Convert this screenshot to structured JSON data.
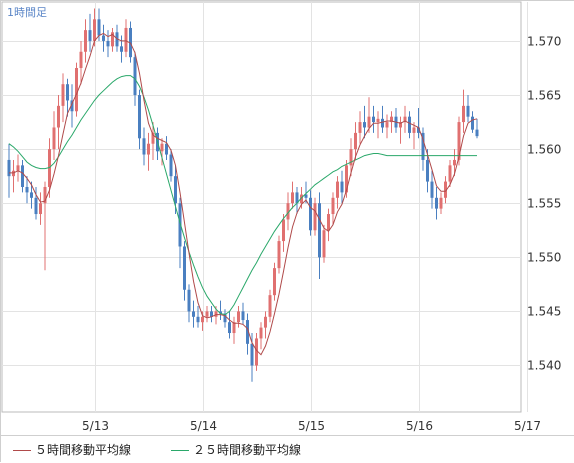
{
  "chart_data": {
    "type": "candlestick",
    "period_label": "1時間足",
    "x_tick_labels": [
      "5/13",
      "5/14",
      "5/15",
      "5/16",
      "5/17"
    ],
    "x_tick_index": [
      19,
      43,
      67,
      91,
      115
    ],
    "y_ticks": [
      1.54,
      1.545,
      1.55,
      1.555,
      1.56,
      1.565,
      1.57
    ],
    "ylim": [
      1.5357,
      1.5736
    ],
    "grid": true,
    "up_color": "#e07070",
    "down_color": "#4a7fc0",
    "ma_colors": {
      "ma5": "#b04a4a",
      "ma25": "#2aa86a"
    },
    "legend": [
      {
        "key": "ma5",
        "label": "５時間移動平均線"
      },
      {
        "key": "ma25",
        "label": "２５時間移動平均線"
      }
    ],
    "ohlc": [
      [
        1.559,
        1.5605,
        1.5555,
        1.5575
      ],
      [
        1.5575,
        1.559,
        1.556,
        1.558
      ],
      [
        1.558,
        1.5595,
        1.557,
        1.5585
      ],
      [
        1.5585,
        1.559,
        1.556,
        1.5565
      ],
      [
        1.5565,
        1.5575,
        1.555,
        1.556
      ],
      [
        1.556,
        1.557,
        1.5545,
        1.5555
      ],
      [
        1.5555,
        1.5565,
        1.5535,
        1.554
      ],
      [
        1.554,
        1.556,
        1.553,
        1.555
      ],
      [
        1.555,
        1.557,
        1.5488,
        1.5565
      ],
      [
        1.5565,
        1.561,
        1.5555,
        1.56
      ],
      [
        1.56,
        1.5635,
        1.559,
        1.562
      ],
      [
        1.562,
        1.565,
        1.56,
        1.564
      ],
      [
        1.564,
        1.567,
        1.5625,
        1.566
      ],
      [
        1.566,
        1.5665,
        1.563,
        1.5645
      ],
      [
        1.5645,
        1.566,
        1.562,
        1.5635
      ],
      [
        1.5635,
        1.568,
        1.563,
        1.5675
      ],
      [
        1.5675,
        1.57,
        1.566,
        1.569
      ],
      [
        1.569,
        1.572,
        1.568,
        1.571
      ],
      [
        1.571,
        1.5725,
        1.569,
        1.57
      ],
      [
        1.57,
        1.573,
        1.5695,
        1.572
      ],
      [
        1.572,
        1.573,
        1.57,
        1.5705
      ],
      [
        1.5705,
        1.5715,
        1.569,
        1.57
      ],
      [
        1.57,
        1.571,
        1.5685,
        1.5695
      ],
      [
        1.5695,
        1.5712,
        1.569,
        1.5708
      ],
      [
        1.5708,
        1.5715,
        1.569,
        1.5695
      ],
      [
        1.5695,
        1.5705,
        1.568,
        1.569
      ],
      [
        1.569,
        1.572,
        1.5685,
        1.5712
      ],
      [
        1.5712,
        1.5718,
        1.568,
        1.5685
      ],
      [
        1.5685,
        1.569,
        1.564,
        1.565
      ],
      [
        1.565,
        1.5655,
        1.56,
        1.561
      ],
      [
        1.561,
        1.562,
        1.5585,
        1.5595
      ],
      [
        1.5595,
        1.5615,
        1.558,
        1.5605
      ],
      [
        1.5605,
        1.5625,
        1.559,
        1.5615
      ],
      [
        1.5615,
        1.562,
        1.559,
        1.5598
      ],
      [
        1.5598,
        1.561,
        1.5585,
        1.5605
      ],
      [
        1.5605,
        1.5612,
        1.559,
        1.5595
      ],
      [
        1.5595,
        1.56,
        1.557,
        1.5575
      ],
      [
        1.5575,
        1.5585,
        1.554,
        1.555
      ],
      [
        1.555,
        1.5555,
        1.549,
        1.551
      ],
      [
        1.551,
        1.5515,
        1.546,
        1.547
      ],
      [
        1.547,
        1.5475,
        1.544,
        1.545
      ],
      [
        1.545,
        1.546,
        1.5435,
        1.5445
      ],
      [
        1.5445,
        1.5455,
        1.5435,
        1.544
      ],
      [
        1.544,
        1.545,
        1.5432,
        1.5445
      ],
      [
        1.5445,
        1.5455,
        1.544,
        1.545
      ],
      [
        1.545,
        1.5455,
        1.544,
        1.5445
      ],
      [
        1.5445,
        1.5455,
        1.5438,
        1.545
      ],
      [
        1.545,
        1.546,
        1.5442,
        1.5448
      ],
      [
        1.5448,
        1.5452,
        1.5435,
        1.544
      ],
      [
        1.544,
        1.545,
        1.5425,
        1.543
      ],
      [
        1.543,
        1.5445,
        1.542,
        1.544
      ],
      [
        1.544,
        1.5455,
        1.5435,
        1.545
      ],
      [
        1.545,
        1.5458,
        1.5438,
        1.5442
      ],
      [
        1.5442,
        1.5448,
        1.541,
        1.542
      ],
      [
        1.542,
        1.543,
        1.5385,
        1.54
      ],
      [
        1.54,
        1.543,
        1.5395,
        1.5425
      ],
      [
        1.5425,
        1.544,
        1.5415,
        1.5435
      ],
      [
        1.5435,
        1.545,
        1.5425,
        1.5445
      ],
      [
        1.5445,
        1.547,
        1.544,
        1.5465
      ],
      [
        1.5465,
        1.5495,
        1.546,
        1.549
      ],
      [
        1.549,
        1.552,
        1.5485,
        1.5515
      ],
      [
        1.5515,
        1.554,
        1.5505,
        1.5535
      ],
      [
        1.5535,
        1.556,
        1.5525,
        1.555
      ],
      [
        1.555,
        1.557,
        1.5545,
        1.556
      ],
      [
        1.556,
        1.5565,
        1.554,
        1.555
      ],
      [
        1.555,
        1.5565,
        1.5545,
        1.5558
      ],
      [
        1.5558,
        1.557,
        1.555,
        1.5555
      ],
      [
        1.5555,
        1.5562,
        1.552,
        1.5525
      ],
      [
        1.5525,
        1.5555,
        1.552,
        1.555
      ],
      [
        1.555,
        1.556,
        1.548,
        1.55
      ],
      [
        1.55,
        1.553,
        1.5495,
        1.5525
      ],
      [
        1.5525,
        1.5545,
        1.5515,
        1.554
      ],
      [
        1.554,
        1.556,
        1.553,
        1.5555
      ],
      [
        1.5555,
        1.5575,
        1.5545,
        1.557
      ],
      [
        1.557,
        1.558,
        1.555,
        1.556
      ],
      [
        1.556,
        1.559,
        1.5555,
        1.5585
      ],
      [
        1.5585,
        1.561,
        1.5575,
        1.56
      ],
      [
        1.56,
        1.5625,
        1.559,
        1.5615
      ],
      [
        1.5615,
        1.5635,
        1.5605,
        1.5625
      ],
      [
        1.5625,
        1.564,
        1.561,
        1.562
      ],
      [
        1.562,
        1.5648,
        1.5615,
        1.563
      ],
      [
        1.563,
        1.564,
        1.5615,
        1.5625
      ],
      [
        1.5625,
        1.5635,
        1.561,
        1.5628
      ],
      [
        1.5628,
        1.564,
        1.5615,
        1.562
      ],
      [
        1.562,
        1.5632,
        1.561,
        1.5625
      ],
      [
        1.5625,
        1.5635,
        1.5615,
        1.563
      ],
      [
        1.563,
        1.5638,
        1.5615,
        1.562
      ],
      [
        1.562,
        1.563,
        1.5605,
        1.5625
      ],
      [
        1.5625,
        1.564,
        1.5615,
        1.563
      ],
      [
        1.563,
        1.5635,
        1.561,
        1.5615
      ],
      [
        1.5615,
        1.5625,
        1.56,
        1.562
      ],
      [
        1.562,
        1.5638,
        1.561,
        1.5615
      ],
      [
        1.5615,
        1.562,
        1.558,
        1.559
      ],
      [
        1.559,
        1.56,
        1.556,
        1.557
      ],
      [
        1.557,
        1.558,
        1.5545,
        1.5555
      ],
      [
        1.5555,
        1.5565,
        1.5535,
        1.5545
      ],
      [
        1.5545,
        1.556,
        1.554,
        1.5555
      ],
      [
        1.5555,
        1.5575,
        1.555,
        1.557
      ],
      [
        1.557,
        1.559,
        1.5565,
        1.5585
      ],
      [
        1.5585,
        1.56,
        1.5575,
        1.559
      ],
      [
        1.559,
        1.563,
        1.5585,
        1.5625
      ],
      [
        1.5625,
        1.5655,
        1.5615,
        1.564
      ],
      [
        1.564,
        1.565,
        1.5625,
        1.563
      ],
      [
        1.563,
        1.5635,
        1.5615,
        1.5618
      ],
      [
        1.5618,
        1.5628,
        1.561,
        1.5612
      ]
    ],
    "ma5": [
      1.5578,
      1.5578,
      1.558,
      1.5578,
      1.5573,
      1.5567,
      1.5558,
      1.5551,
      1.5552,
      1.5562,
      1.5577,
      1.5594,
      1.5614,
      1.5633,
      1.5642,
      1.5651,
      1.5661,
      1.5674,
      1.5686,
      1.57,
      1.5705,
      1.5707,
      1.5704,
      1.5706,
      1.5702,
      1.57,
      1.57,
      1.5698,
      1.5689,
      1.567,
      1.5645,
      1.5624,
      1.5613,
      1.561,
      1.5608,
      1.5606,
      1.5599,
      1.5585,
      1.556,
      1.5532,
      1.5504,
      1.5478,
      1.5458,
      1.5446,
      1.5444,
      1.5445,
      1.5447,
      1.5447,
      1.5446,
      1.5442,
      1.5439,
      1.5439,
      1.5438,
      1.5434,
      1.5421,
      1.5414,
      1.541,
      1.5418,
      1.5431,
      1.5448,
      1.5466,
      1.5487,
      1.5509,
      1.5528,
      1.5541,
      1.5549,
      1.5553,
      1.5546,
      1.5543,
      1.5535,
      1.5527,
      1.5524,
      1.553,
      1.5542,
      1.5549,
      1.5562,
      1.5578,
      1.5593,
      1.5604,
      1.5612,
      1.5619,
      1.5624,
      1.5624,
      1.5625,
      1.5626,
      1.5626,
      1.5625,
      1.5624,
      1.5626,
      1.5624,
      1.5622,
      1.562,
      1.5609,
      1.5595,
      1.5581,
      1.5566,
      1.5561,
      1.5561,
      1.5567,
      1.5577,
      1.5593,
      1.5612,
      1.5624,
      1.5627,
      1.5628
    ],
    "ma25": [
      1.5605,
      1.5602,
      1.5598,
      1.5593,
      1.5588,
      1.5585,
      1.5583,
      1.5582,
      1.5582,
      1.5583,
      1.5587,
      1.5593,
      1.56,
      1.5607,
      1.5613,
      1.562,
      1.5627,
      1.5633,
      1.5639,
      1.5645,
      1.565,
      1.5654,
      1.5658,
      1.5662,
      1.5665,
      1.5667,
      1.5668,
      1.5668,
      1.5665,
      1.5658,
      1.5648,
      1.5636,
      1.5622,
      1.5607,
      1.5592,
      1.5577,
      1.5562,
      1.5547,
      1.5532,
      1.5518,
      1.5505,
      1.5493,
      1.5482,
      1.5472,
      1.5464,
      1.5458,
      1.5452,
      1.5448,
      1.5447,
      1.545,
      1.5456,
      1.5464,
      1.5472,
      1.548,
      1.5488,
      1.5495,
      1.5503,
      1.551,
      1.5517,
      1.5524,
      1.553,
      1.5536,
      1.5541,
      1.5546,
      1.555,
      1.5555,
      1.5559,
      1.5563,
      1.5567,
      1.557,
      1.5573,
      1.5576,
      1.5579,
      1.5581,
      1.5584,
      1.5586,
      1.5588,
      1.559,
      1.5592,
      1.5594,
      1.5595,
      1.5596,
      1.5596,
      1.5595,
      1.5594,
      1.5594,
      1.5594,
      1.5594,
      1.5594,
      1.5594,
      1.5594,
      1.5594,
      1.5594,
      1.5594,
      1.5594,
      1.5594,
      1.5594,
      1.5594,
      1.5594,
      1.5594,
      1.5594,
      1.5594,
      1.5594,
      1.5594,
      1.5594
    ]
  }
}
